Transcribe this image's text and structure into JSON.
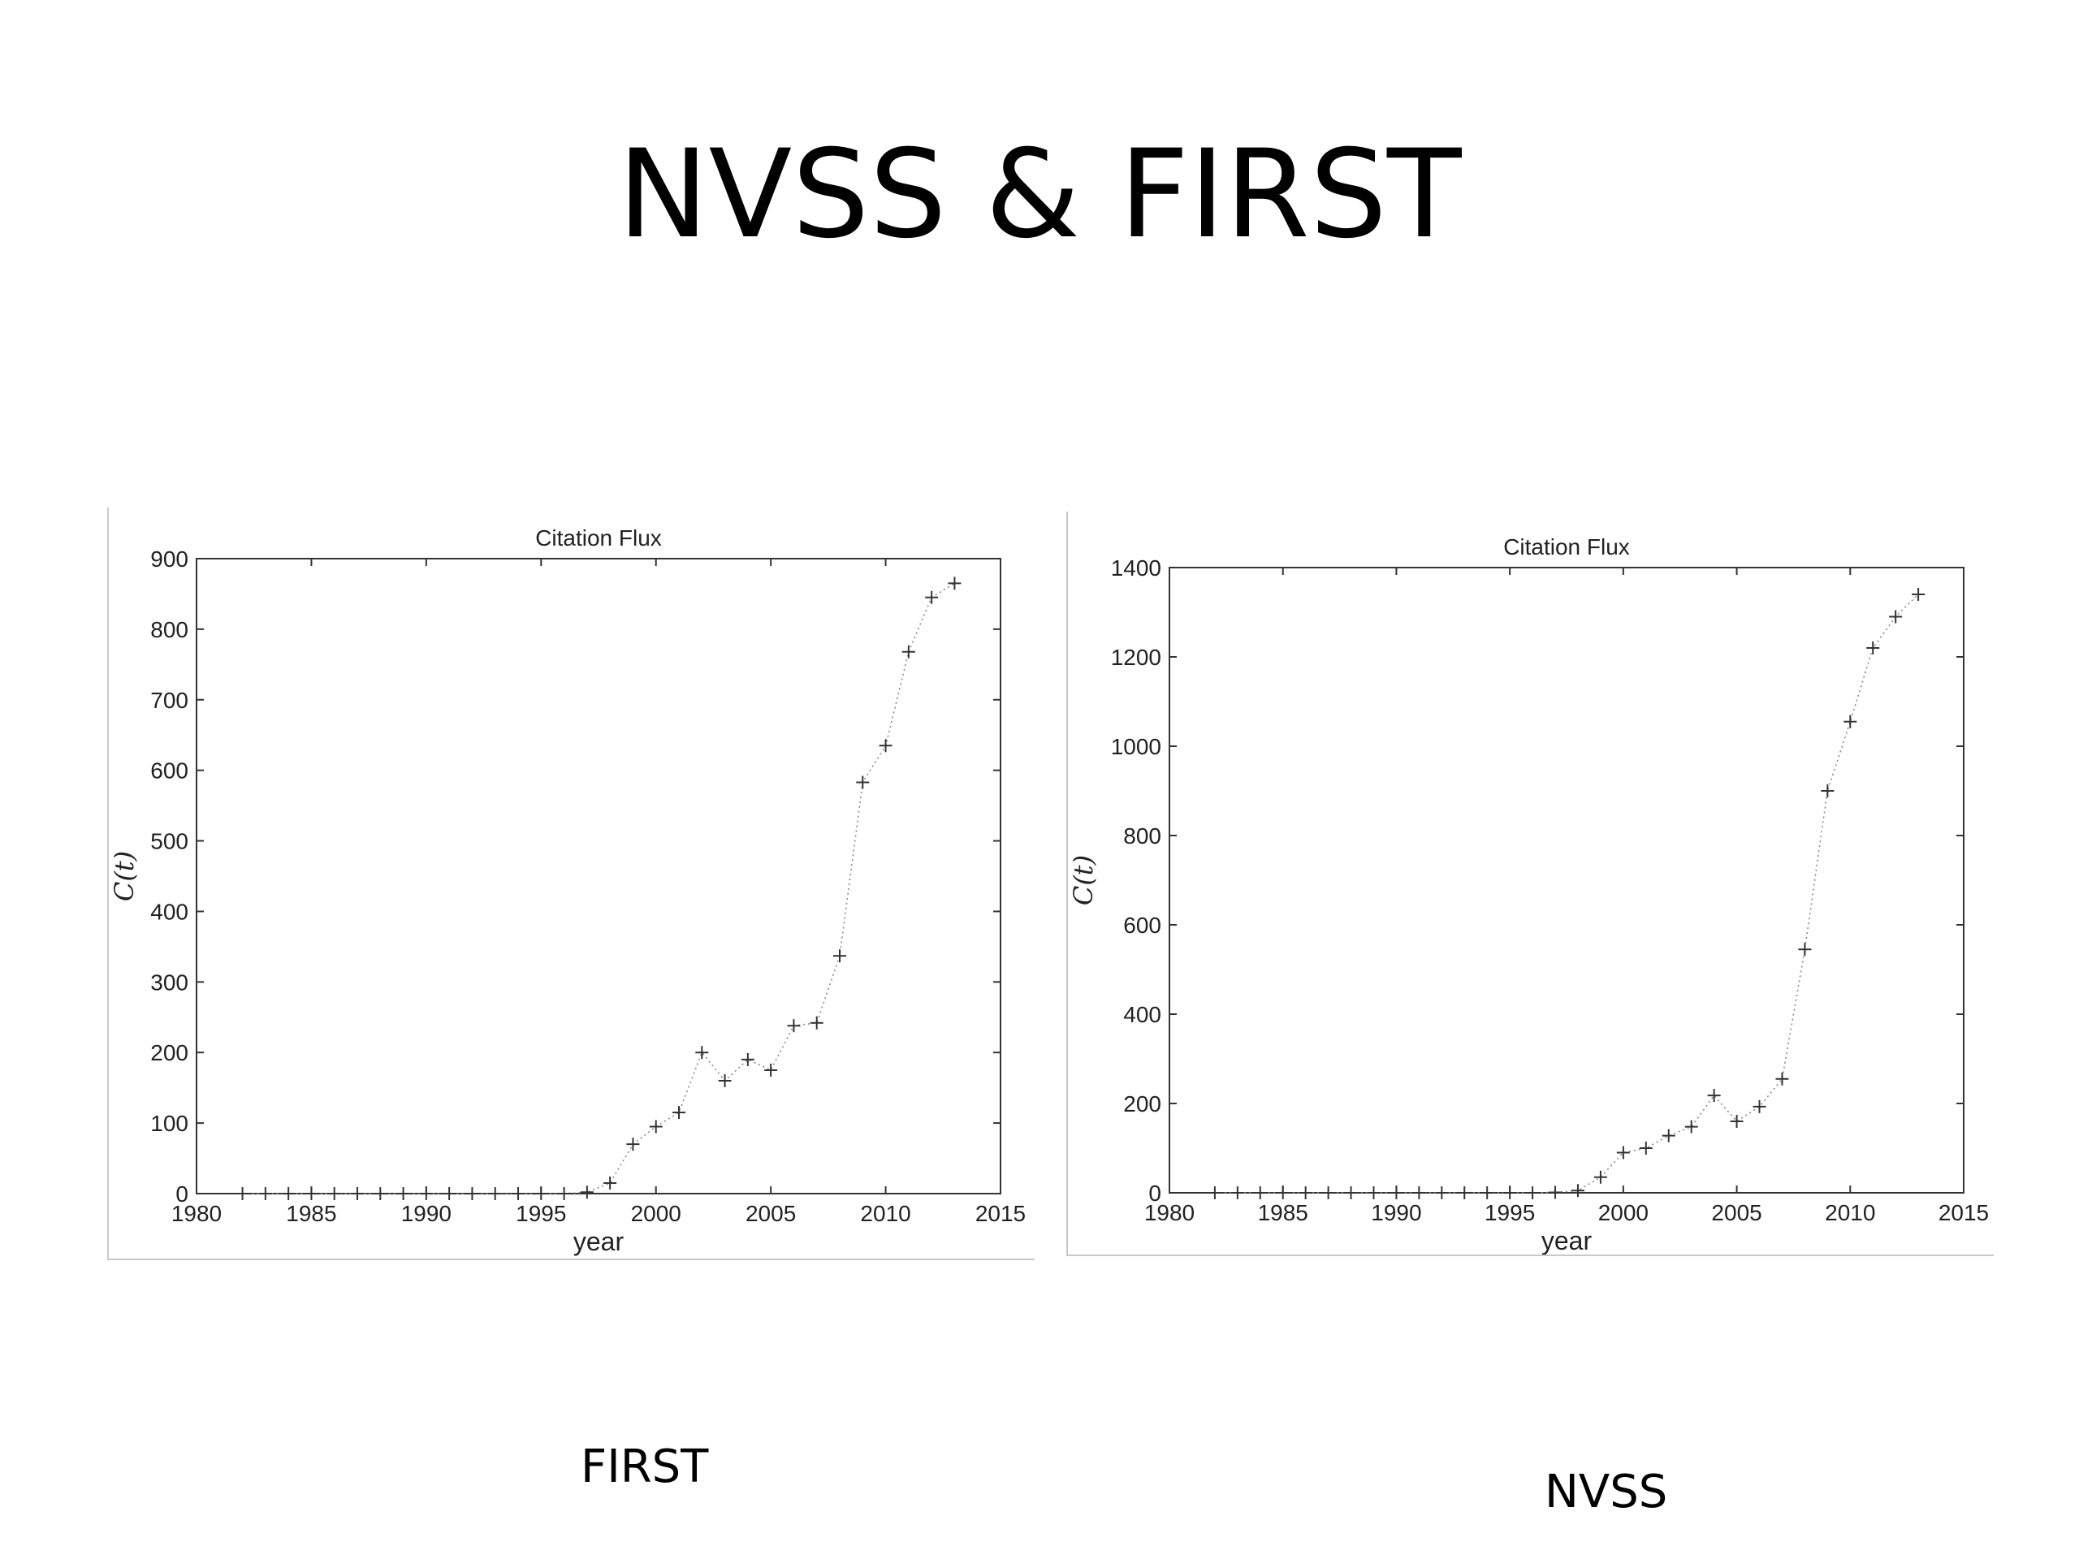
{
  "slide": {
    "title": "NVSS & FIRST",
    "captions": {
      "first": "FIRST",
      "nvss": "NVSS"
    }
  },
  "chart_data": [
    {
      "id": "first",
      "type": "line",
      "title": "Citation Flux",
      "xlabel": "year",
      "ylabel": "C(t)",
      "xlim": [
        1980,
        2015
      ],
      "ylim": [
        0,
        900
      ],
      "xticks": [
        1980,
        1985,
        1990,
        1995,
        2000,
        2005,
        2010,
        2015
      ],
      "yticks": [
        0,
        100,
        200,
        300,
        400,
        500,
        600,
        700,
        800,
        900
      ],
      "grid": false,
      "line_style": "dotted with + markers",
      "color": "#000000",
      "series": [
        {
          "x": [
            1982,
            1983,
            1984,
            1985,
            1986,
            1987,
            1988,
            1989,
            1990,
            1991,
            1992,
            1993,
            1994,
            1995,
            1996,
            1997,
            1998,
            1999,
            2000,
            2001,
            2002,
            2003,
            2004,
            2005,
            2006,
            2007,
            2008,
            2009,
            2010,
            2011,
            2012,
            2013
          ],
          "y": [
            0,
            0,
            0,
            0,
            0,
            0,
            0,
            0,
            0,
            0,
            0,
            0,
            0,
            0,
            0,
            2,
            15,
            70,
            95,
            115,
            200,
            160,
            190,
            175,
            238,
            242,
            337,
            583,
            635,
            768,
            845,
            865
          ]
        }
      ]
    },
    {
      "id": "nvss",
      "type": "line",
      "title": "Citation Flux",
      "xlabel": "year",
      "ylabel": "C(t)",
      "xlim": [
        1980,
        2015
      ],
      "ylim": [
        0,
        1400
      ],
      "xticks": [
        1980,
        1985,
        1990,
        1995,
        2000,
        2005,
        2010,
        2015
      ],
      "yticks": [
        0,
        200,
        400,
        600,
        800,
        1000,
        1200,
        1400
      ],
      "grid": false,
      "line_style": "dotted with + markers",
      "color": "#000000",
      "series": [
        {
          "x": [
            1982,
            1983,
            1984,
            1985,
            1986,
            1987,
            1988,
            1989,
            1990,
            1991,
            1992,
            1993,
            1994,
            1995,
            1996,
            1997,
            1998,
            1999,
            2000,
            2001,
            2002,
            2003,
            2004,
            2005,
            2006,
            2007,
            2008,
            2009,
            2010,
            2011,
            2012,
            2013
          ],
          "y": [
            0,
            0,
            0,
            0,
            0,
            0,
            0,
            0,
            0,
            0,
            0,
            0,
            0,
            0,
            0,
            1,
            5,
            35,
            90,
            100,
            128,
            148,
            218,
            160,
            193,
            255,
            545,
            900,
            1055,
            1220,
            1290,
            1340
          ]
        }
      ]
    }
  ]
}
